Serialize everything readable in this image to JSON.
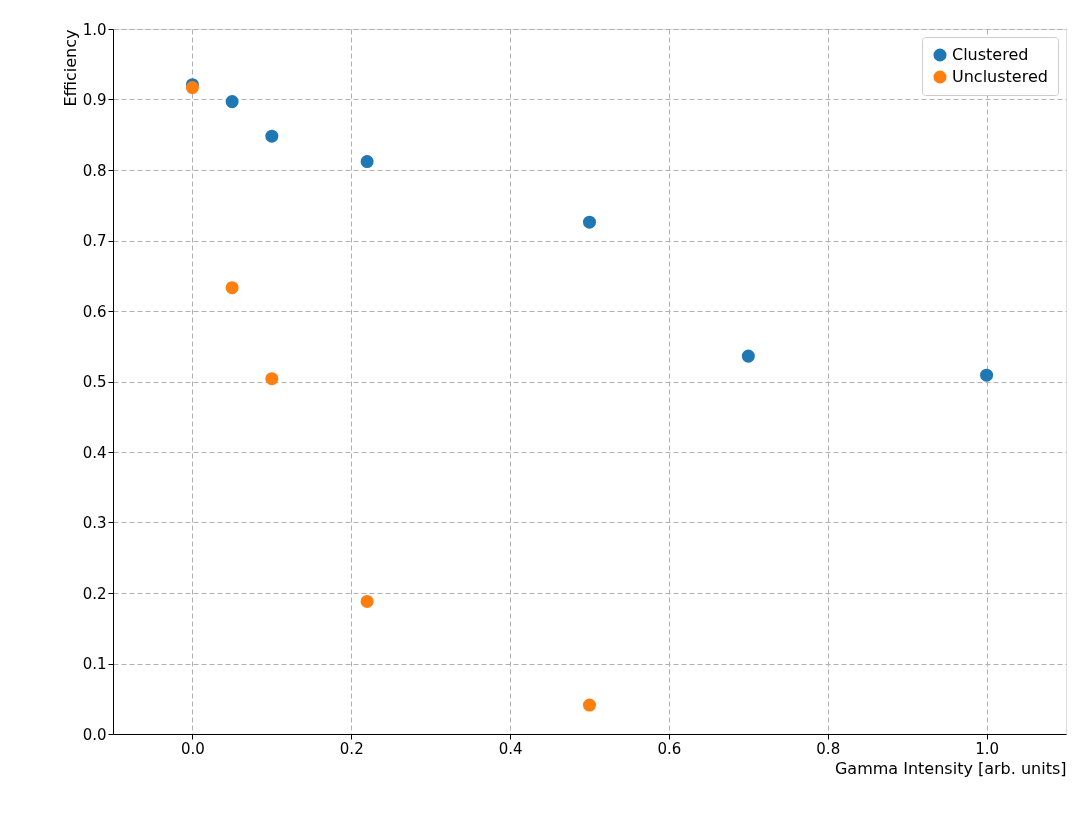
{
  "chart_data": {
    "type": "scatter",
    "xlabel": "Gamma Intensity [arb. units]",
    "ylabel": "Efficiency",
    "series": [
      {
        "name": "Clustered",
        "color": "#1f77b4",
        "x": [
          0,
          0.05,
          0.1,
          0.22,
          0.5,
          0.7,
          1.0
        ],
        "values": [
          0.921,
          0.897,
          0.848,
          0.812,
          0.726,
          0.536,
          0.509
        ]
      },
      {
        "name": "Unclustered",
        "color": "#ff7f0e",
        "x": [
          0,
          0.05,
          0.1,
          0.22,
          0.5
        ],
        "values": [
          0.917,
          0.633,
          0.504,
          0.188,
          0.041
        ]
      }
    ],
    "xlim": [
      -0.1,
      1.1
    ],
    "xticks": [
      {
        "value": 0,
        "label": "0.0"
      },
      {
        "value": 0.2,
        "label": "0.2"
      },
      {
        "value": 0.4,
        "label": "0.4"
      },
      {
        "value": 0.6,
        "label": "0.6"
      },
      {
        "value": 0.8,
        "label": "0.8"
      },
      {
        "value": 1.0,
        "label": "1.0"
      }
    ],
    "ylim": [
      0,
      1.0
    ],
    "yticks": [
      {
        "value": 0,
        "label": "0.0"
      },
      {
        "value": 0.1,
        "label": "0.1"
      },
      {
        "value": 0.2,
        "label": "0.2"
      },
      {
        "value": 0.3,
        "label": "0.3"
      },
      {
        "value": 0.4,
        "label": "0.4"
      },
      {
        "value": 0.5,
        "label": "0.5"
      },
      {
        "value": 0.6,
        "label": "0.6"
      },
      {
        "value": 0.7,
        "label": "0.7"
      },
      {
        "value": 0.8,
        "label": "0.8"
      },
      {
        "value": 0.9,
        "label": "0.9"
      },
      {
        "value": 1.0,
        "label": "1.0"
      }
    ],
    "grid": true,
    "legend": "top right",
    "marker": "circle"
  }
}
